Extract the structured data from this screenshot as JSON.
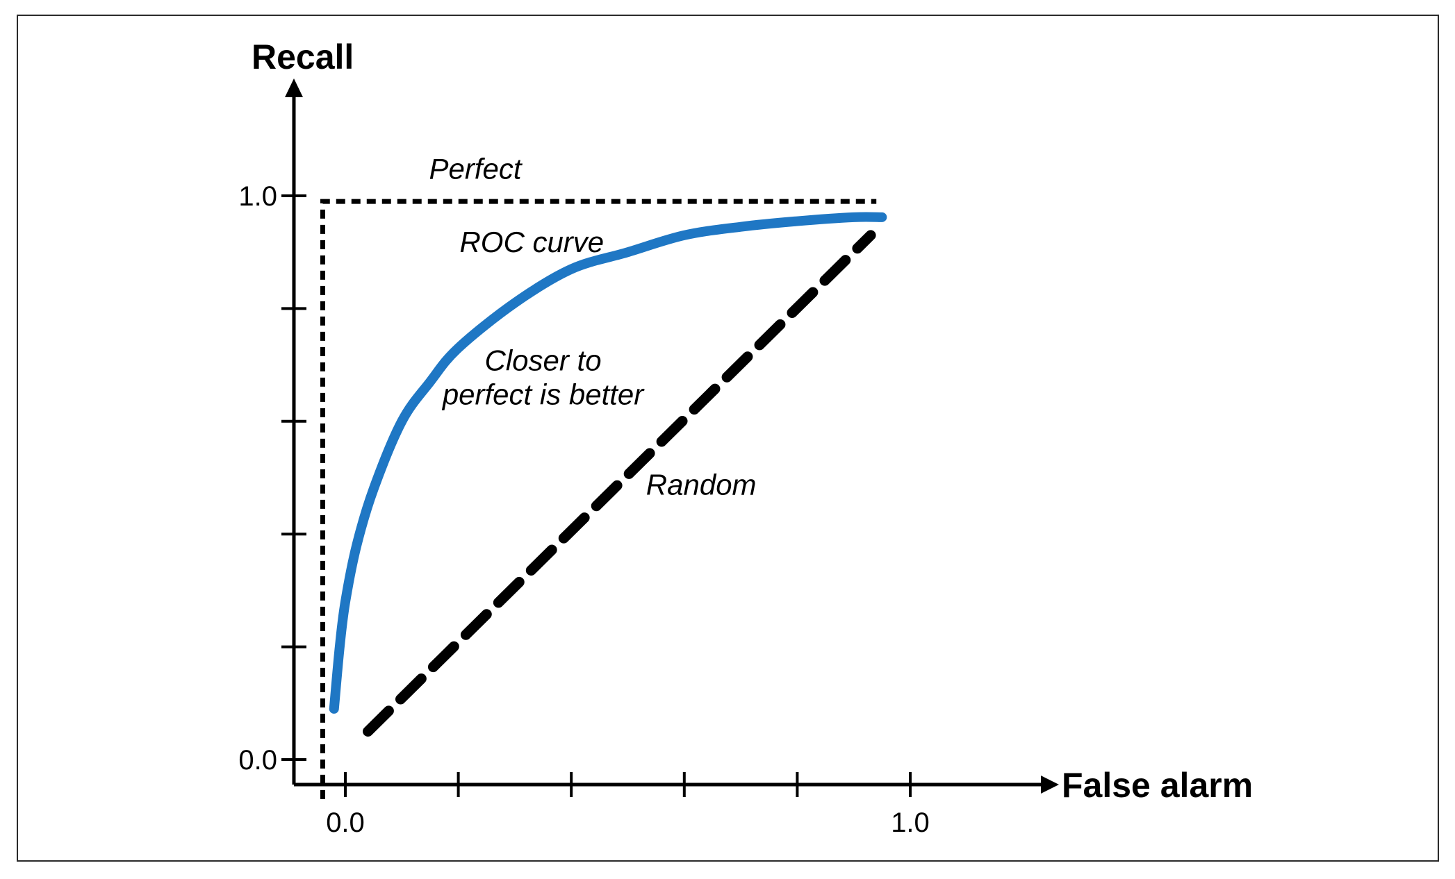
{
  "chart_data": {
    "type": "line",
    "xlabel": "False alarm",
    "ylabel": "Recall",
    "xlim": [
      0.0,
      1.0
    ],
    "ylim": [
      0.0,
      1.0
    ],
    "x_tick_labels": [
      {
        "value": 0.0,
        "label": "0.0"
      },
      {
        "value": 1.0,
        "label": "1.0"
      }
    ],
    "y_tick_labels": [
      {
        "value": 0.0,
        "label": "0.0"
      },
      {
        "value": 1.0,
        "label": "1.0"
      }
    ],
    "x_ticks": [
      0.0,
      0.2,
      0.4,
      0.6,
      0.8,
      1.0
    ],
    "y_ticks": [
      0.0,
      0.2,
      0.4,
      0.6,
      0.8,
      1.0
    ],
    "grid": false,
    "series": [
      {
        "name": "Perfect",
        "style": "dotted",
        "color": "#000000",
        "x": [
          -0.04,
          -0.04,
          0.94
        ],
        "y": [
          -0.07,
          0.99,
          0.99
        ]
      },
      {
        "name": "ROC curve",
        "style": "solid",
        "color": "#1f77c4",
        "x": [
          -0.02,
          -0.01,
          0.0,
          0.02,
          0.05,
          0.1,
          0.15,
          0.2,
          0.3,
          0.4,
          0.5,
          0.6,
          0.7,
          0.8,
          0.9,
          0.95
        ],
        "y": [
          0.09,
          0.2,
          0.28,
          0.38,
          0.48,
          0.6,
          0.67,
          0.73,
          0.81,
          0.87,
          0.9,
          0.93,
          0.945,
          0.955,
          0.962,
          0.962
        ]
      },
      {
        "name": "Random",
        "style": "dashed",
        "color": "#000000",
        "x": [
          0.04,
          0.93
        ],
        "y": [
          0.05,
          0.93
        ]
      }
    ],
    "annotations": [
      {
        "text": "Perfect",
        "x": 0.23,
        "y": 1.03
      },
      {
        "text": "ROC curve",
        "x": 0.33,
        "y": 0.9
      },
      {
        "text": "Closer to",
        "x": 0.35,
        "y": 0.69
      },
      {
        "text": "perfect is better",
        "x": 0.35,
        "y": 0.63
      },
      {
        "text": "Random",
        "x": 0.63,
        "y": 0.47
      }
    ]
  }
}
